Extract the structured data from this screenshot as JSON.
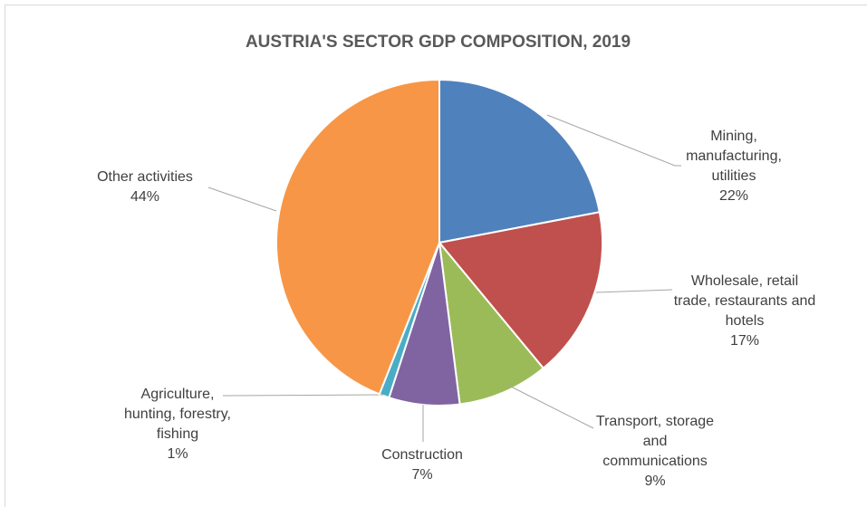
{
  "chart_data": {
    "type": "pie",
    "title": "AUSTRIA'S SECTOR GDP COMPOSITION, 2019",
    "categories": [
      "Mining, manufacturing, utilities",
      "Wholesale, retail trade, restaurants and hotels",
      "Transport, storage and communications",
      "Construction",
      "Agriculture, hunting, forestry, fishing",
      "Other activities"
    ],
    "values": [
      22,
      17,
      9,
      7,
      1,
      44
    ],
    "value_labels": [
      "22%",
      "17%",
      "9%",
      "7%",
      "1%",
      "44%"
    ],
    "colors": [
      "#4f81bd",
      "#c0504d",
      "#9bbb59",
      "#8064a2",
      "#4bacc6",
      "#f79646"
    ]
  }
}
